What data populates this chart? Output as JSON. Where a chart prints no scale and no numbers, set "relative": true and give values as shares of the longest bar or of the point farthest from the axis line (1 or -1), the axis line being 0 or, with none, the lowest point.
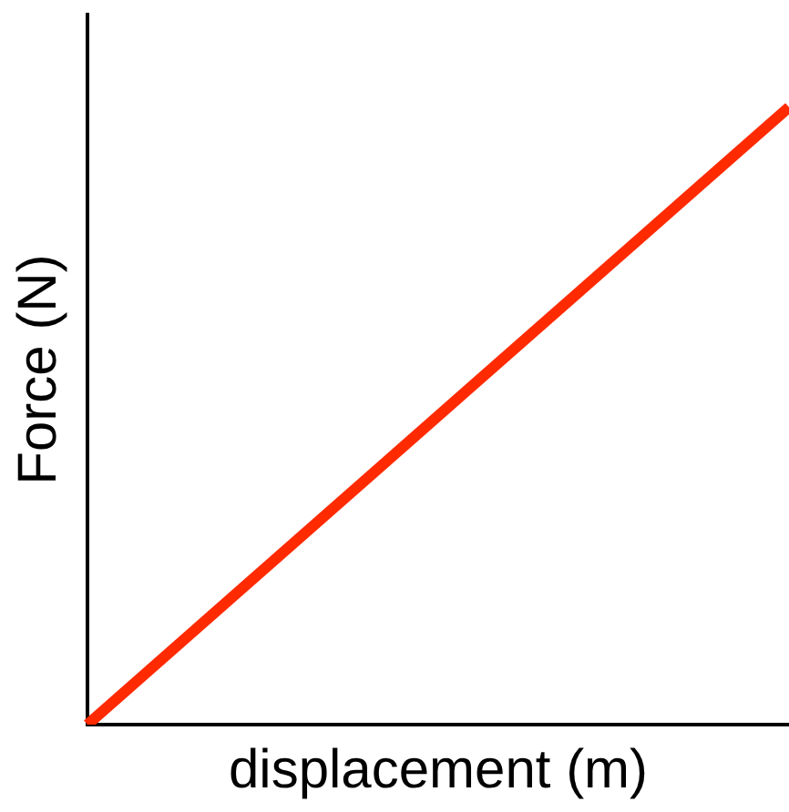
{
  "chart_data": {
    "type": "line",
    "relative": true,
    "xlabel": "displacement (m)",
    "ylabel": "Force (N)",
    "categories": [
      null,
      null
    ],
    "series": [
      {
        "color": "#ff2a00",
        "values": [
          0,
          1
        ]
      }
    ],
    "grid": false,
    "legend": false,
    "marker": "none",
    "line_style": "solid"
  }
}
